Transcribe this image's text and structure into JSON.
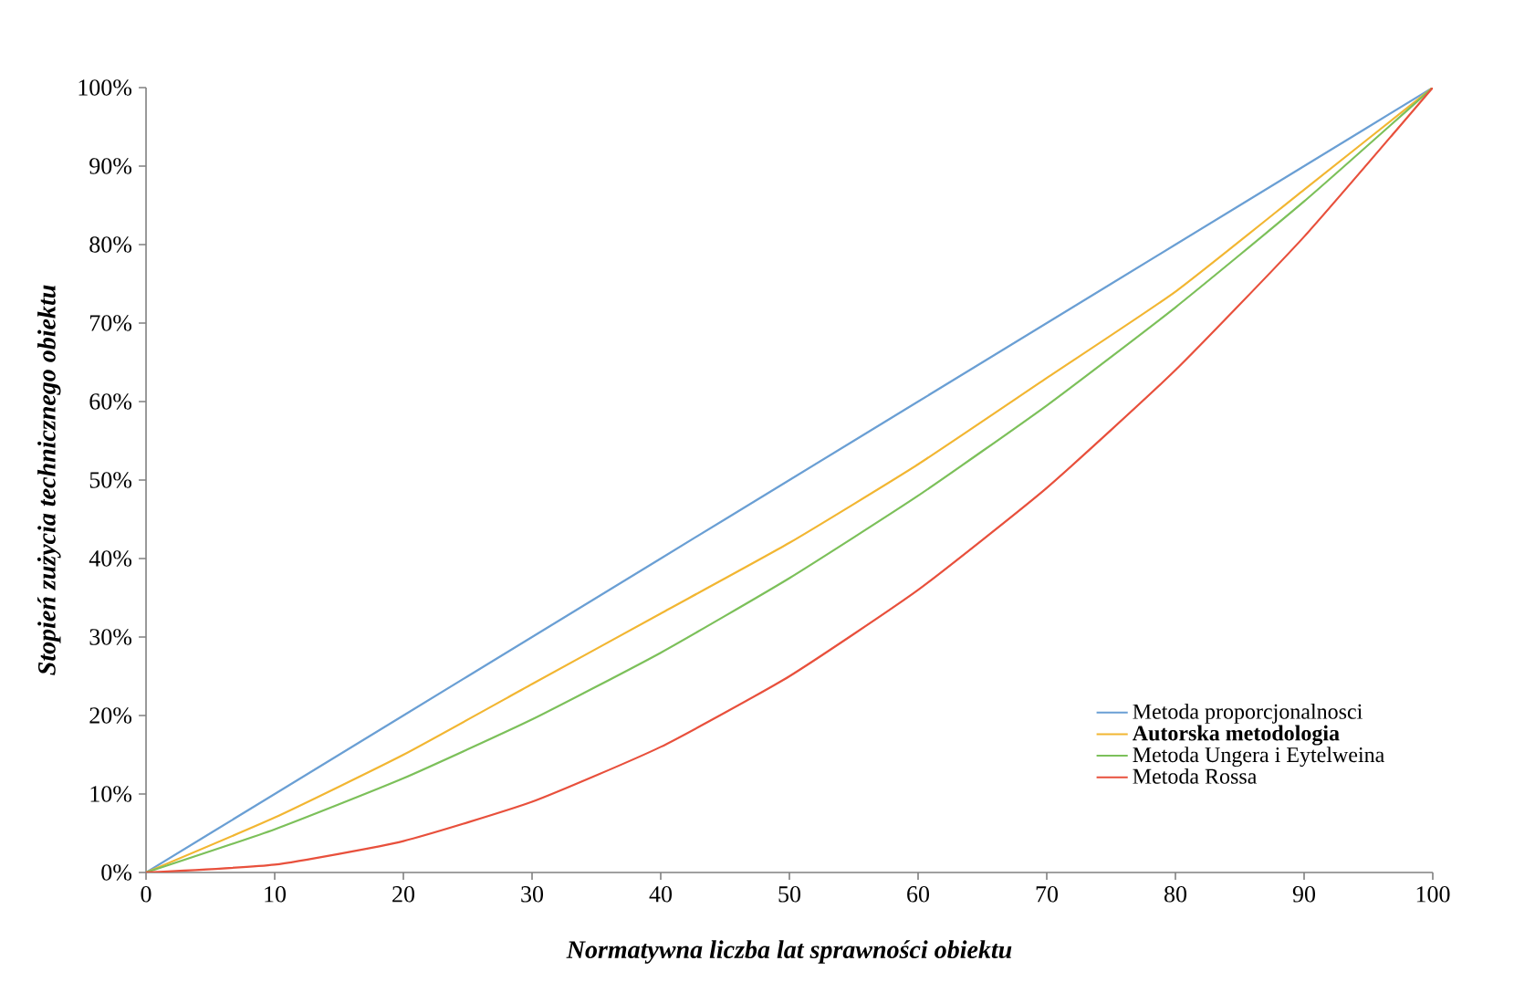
{
  "chart_data": {
    "type": "line",
    "xlabel": "Normatywna liczba lat sprawności obiektu",
    "ylabel": "Stopień zużycia technicznego obiektu",
    "x": [
      0,
      10,
      20,
      30,
      40,
      50,
      60,
      70,
      80,
      90,
      100
    ],
    "series": [
      {
        "name": "Metoda proporcjonalnosci",
        "color": "#6a9fd4",
        "values": [
          0,
          10,
          20,
          30,
          40,
          50,
          60,
          70,
          80,
          90,
          100
        ]
      },
      {
        "name": "**Autorska  metodologia**",
        "color": "#f2b632",
        "values": [
          0,
          7,
          15,
          24,
          33,
          42,
          52,
          63,
          74,
          87,
          100
        ]
      },
      {
        "name": "Metoda Ungera i Eytelweina",
        "color": "#7cc05a",
        "values": [
          0,
          5.5,
          12,
          19.5,
          28,
          37.5,
          48,
          59.5,
          72,
          85.5,
          100
        ]
      },
      {
        "name": "Metoda Rossa",
        "color": "#e8503c",
        "values": [
          0,
          1,
          4,
          9,
          16,
          25,
          36,
          49,
          64,
          81,
          100
        ]
      }
    ],
    "xlim": [
      0,
      100
    ],
    "xticks": [
      0,
      10,
      20,
      30,
      40,
      50,
      60,
      70,
      80,
      90,
      100
    ],
    "ylim": [
      0,
      100
    ],
    "yticks": [
      {
        "value": 0,
        "label": "0%"
      },
      {
        "value": 10,
        "label": "10%"
      },
      {
        "value": 20,
        "label": "20%"
      },
      {
        "value": 30,
        "label": "30%"
      },
      {
        "value": 40,
        "label": "40%"
      },
      {
        "value": 50,
        "label": "50%"
      },
      {
        "value": 60,
        "label": "60%"
      },
      {
        "value": 70,
        "label": "70%"
      },
      {
        "value": 80,
        "label": "80%"
      },
      {
        "value": 90,
        "label": "90%"
      },
      {
        "value": 100,
        "label": "100%"
      }
    ],
    "legend": "bottom right",
    "grid": false,
    "marker": "none",
    "line_style": "solid"
  }
}
